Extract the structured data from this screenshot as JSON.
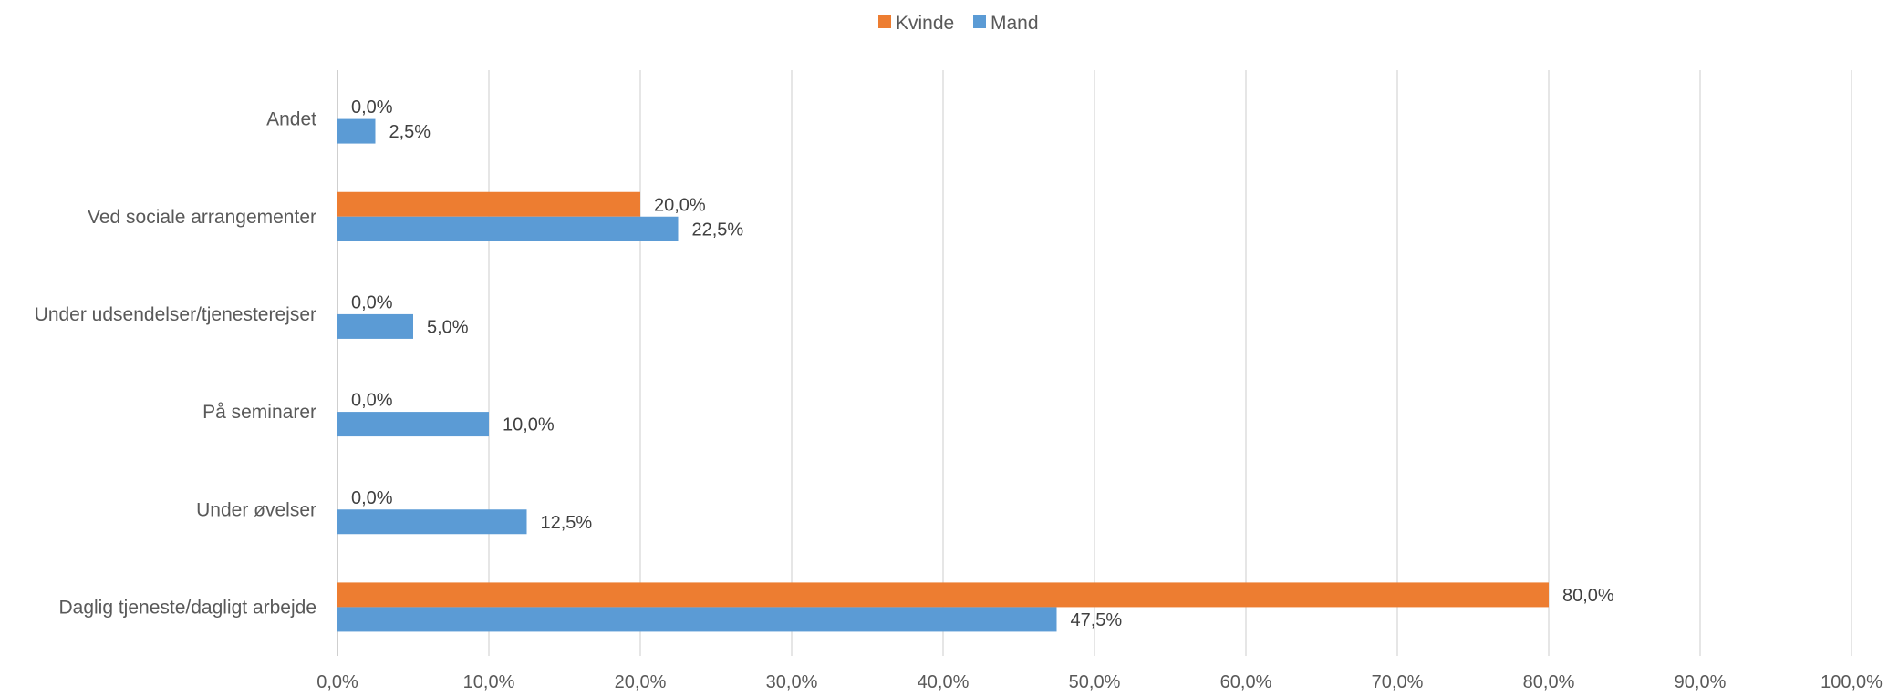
{
  "chart_data": {
    "type": "bar",
    "orientation": "horizontal",
    "title": "",
    "xlabel": "",
    "ylabel": "",
    "categories": [
      "Andet",
      "Ved sociale arrangementer",
      "Under udsendelser/tjenesterejser",
      "På seminarer",
      "Under øvelser",
      "Daglig tjeneste/dagligt arbejde"
    ],
    "series": [
      {
        "name": "Kvinde",
        "color": "#ED7D31",
        "values": [
          0.0,
          20.0,
          0.0,
          0.0,
          0.0,
          80.0
        ],
        "labels": [
          "0,0%",
          "20,0%",
          "0,0%",
          "0,0%",
          "0,0%",
          "80,0%"
        ]
      },
      {
        "name": "Mand",
        "color": "#5B9BD5",
        "values": [
          2.5,
          22.5,
          5.0,
          10.0,
          12.5,
          47.5
        ],
        "labels": [
          "2,5%",
          "22,5%",
          "5,0%",
          "10,0%",
          "12,5%",
          "47,5%"
        ]
      }
    ],
    "xlim": [
      0,
      100
    ],
    "xticks": [
      0,
      10,
      20,
      30,
      40,
      50,
      60,
      70,
      80,
      90,
      100
    ],
    "xtick_labels": [
      "0,0%",
      "10,0%",
      "20,0%",
      "30,0%",
      "40,0%",
      "50,0%",
      "60,0%",
      "70,0%",
      "80,0%",
      "90,0%",
      "100,0%"
    ],
    "grid": true,
    "legend_position": "top"
  }
}
